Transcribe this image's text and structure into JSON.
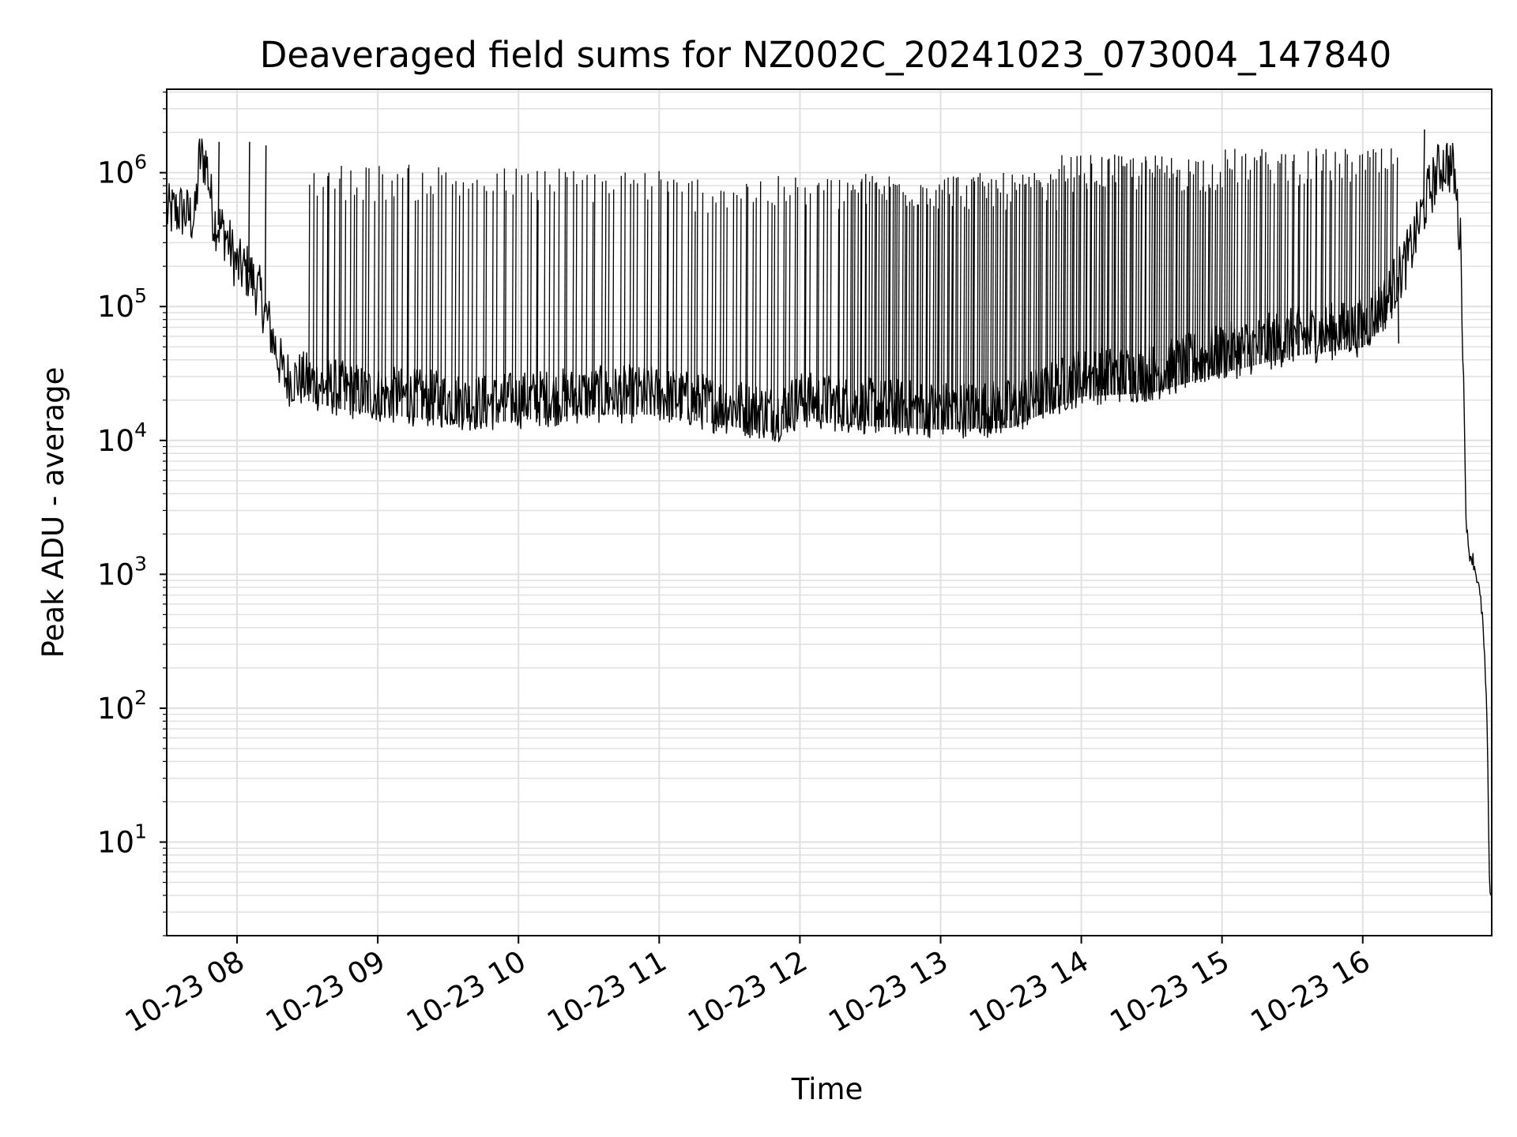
{
  "chart_data": {
    "type": "line",
    "title": "Deaveraged field sums for NZ002C_20241023_073004_147840",
    "xlabel": "Time",
    "ylabel": "Peak ADU - average",
    "yscale": "log",
    "grid": true,
    "legend": "none",
    "colors": {
      "line": "#000000",
      "grid": "#e0e0e0",
      "axes": "#000000",
      "background": "#ffffff"
    },
    "xlim": [
      "2024-10-23 07:30",
      "2024-10-23 16:55"
    ],
    "ylim": [
      2,
      4200000
    ],
    "x_ticks": [
      {
        "t": "2024-10-23 08:00",
        "label": "10-23 08"
      },
      {
        "t": "2024-10-23 09:00",
        "label": "10-23 09"
      },
      {
        "t": "2024-10-23 10:00",
        "label": "10-23 10"
      },
      {
        "t": "2024-10-23 11:00",
        "label": "10-23 11"
      },
      {
        "t": "2024-10-23 12:00",
        "label": "10-23 12"
      },
      {
        "t": "2024-10-23 13:00",
        "label": "10-23 13"
      },
      {
        "t": "2024-10-23 14:00",
        "label": "10-23 14"
      },
      {
        "t": "2024-10-23 15:00",
        "label": "10-23 15"
      },
      {
        "t": "2024-10-23 16:00",
        "label": "10-23 16"
      }
    ],
    "y_ticks": [
      {
        "value": 10,
        "base": "10",
        "exp": "1"
      },
      {
        "value": 100,
        "base": "10",
        "exp": "2"
      },
      {
        "value": 1000,
        "base": "10",
        "exp": "3"
      },
      {
        "value": 10000,
        "base": "10",
        "exp": "4"
      },
      {
        "value": 100000,
        "base": "10",
        "exp": "5"
      },
      {
        "value": 1000000,
        "base": "10",
        "exp": "6"
      }
    ],
    "series": [
      {
        "x": [
          "2024-10-23 07:30",
          "2024-10-23 07:36",
          "2024-10-23 07:42",
          "2024-10-23 07:44",
          "2024-10-23 07:47",
          "2024-10-23 07:50",
          "2024-10-23 07:55",
          "2024-10-23 08:00",
          "2024-10-23 08:05",
          "2024-10-23 08:10",
          "2024-10-23 08:15",
          "2024-10-23 08:20",
          "2024-10-23 08:30",
          "2024-10-23 08:45",
          "2024-10-23 09:00",
          "2024-10-23 09:15",
          "2024-10-23 09:30",
          "2024-10-23 09:45",
          "2024-10-23 10:00",
          "2024-10-23 10:30",
          "2024-10-23 11:00",
          "2024-10-23 11:30",
          "2024-10-23 11:50",
          "2024-10-23 12:00",
          "2024-10-23 12:30",
          "2024-10-23 13:00",
          "2024-10-23 13:30",
          "2024-10-23 14:00",
          "2024-10-23 14:30",
          "2024-10-23 15:00",
          "2024-10-23 15:30",
          "2024-10-23 16:00",
          "2024-10-23 16:10",
          "2024-10-23 16:20",
          "2024-10-23 16:28",
          "2024-10-23 16:33",
          "2024-10-23 16:36",
          "2024-10-23 16:39",
          "2024-10-23 16:42",
          "2024-10-23 16:44",
          "2024-10-23 16:45",
          "2024-10-23 16:47",
          "2024-10-23 16:49",
          "2024-10-23 16:51",
          "2024-10-23 16:52",
          "2024-10-23 16:53",
          "2024-10-23 16:54",
          "2024-10-23 16:55"
        ],
        "y": [
          500000,
          520000,
          450000,
          1300000,
          1200000,
          450000,
          350000,
          200000,
          180000,
          120000,
          60000,
          30000,
          28000,
          24000,
          22000,
          21000,
          20000,
          19000,
          20000,
          22000,
          22000,
          18000,
          16000,
          20000,
          18000,
          17000,
          17500,
          30000,
          32000,
          45000,
          60000,
          70000,
          110000,
          250000,
          700000,
          1100000,
          1200000,
          1000000,
          250000,
          3000,
          1500,
          1300,
          900,
          500,
          220,
          80,
          5,
          4
        ]
      }
    ],
    "spikes": [
      {
        "t": "2024-10-23 07:52",
        "y": 1700000
      },
      {
        "t": "2024-10-23 08:05",
        "y": 1700000
      },
      {
        "t": "2024-10-23 08:12",
        "y": 1600000
      },
      {
        "t": "2024-10-23 16:26",
        "y": 2100000
      },
      {
        "t": "2024-10-23 16:15",
        "y": 53000
      }
    ],
    "dense_spikes": [
      {
        "from": "2024-10-23 08:30",
        "to": "2024-10-23 09:30",
        "count": 35,
        "peak": 1100000
      },
      {
        "from": "2024-10-23 09:30",
        "to": "2024-10-23 11:00",
        "count": 45,
        "peak": 1050000
      },
      {
        "from": "2024-10-23 11:00",
        "to": "2024-10-23 12:20",
        "count": 45,
        "peak": 900000
      },
      {
        "from": "2024-10-23 12:20",
        "to": "2024-10-23 13:50",
        "count": 90,
        "peak": 950000
      },
      {
        "from": "2024-10-23 13:50",
        "to": "2024-10-23 15:00",
        "count": 75,
        "peak": 1300000
      },
      {
        "from": "2024-10-23 15:00",
        "to": "2024-10-23 16:15",
        "count": 60,
        "peak": 1450000
      }
    ]
  }
}
